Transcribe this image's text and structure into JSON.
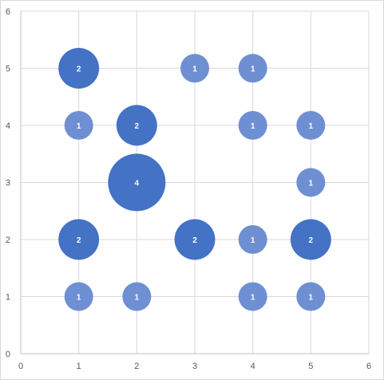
{
  "chart_data": {
    "type": "bubble",
    "xlim": [
      0,
      6
    ],
    "ylim": [
      0,
      6
    ],
    "x_ticks": [
      0,
      1,
      2,
      3,
      4,
      5,
      6
    ],
    "y_ticks": [
      0,
      1,
      2,
      3,
      4,
      5,
      6
    ],
    "grid": true,
    "colors": {
      "light": "#6f8fd3",
      "dark": "#4472c4",
      "grid": "#d9d9d9",
      "tick_text": "#595959"
    },
    "points": [
      {
        "x": 1,
        "y": 5,
        "size": 2
      },
      {
        "x": 3,
        "y": 5,
        "size": 1
      },
      {
        "x": 4,
        "y": 5,
        "size": 1
      },
      {
        "x": 1,
        "y": 4,
        "size": 1
      },
      {
        "x": 2,
        "y": 4,
        "size": 2
      },
      {
        "x": 4,
        "y": 4,
        "size": 1
      },
      {
        "x": 5,
        "y": 4,
        "size": 1
      },
      {
        "x": 2,
        "y": 3,
        "size": 4
      },
      {
        "x": 5,
        "y": 3,
        "size": 1
      },
      {
        "x": 1,
        "y": 2,
        "size": 2
      },
      {
        "x": 3,
        "y": 2,
        "size": 2
      },
      {
        "x": 4,
        "y": 2,
        "size": 1
      },
      {
        "x": 5,
        "y": 2,
        "size": 2
      },
      {
        "x": 1,
        "y": 1,
        "size": 1
      },
      {
        "x": 2,
        "y": 1,
        "size": 1
      },
      {
        "x": 4,
        "y": 1,
        "size": 1
      },
      {
        "x": 5,
        "y": 1,
        "size": 1
      }
    ]
  }
}
